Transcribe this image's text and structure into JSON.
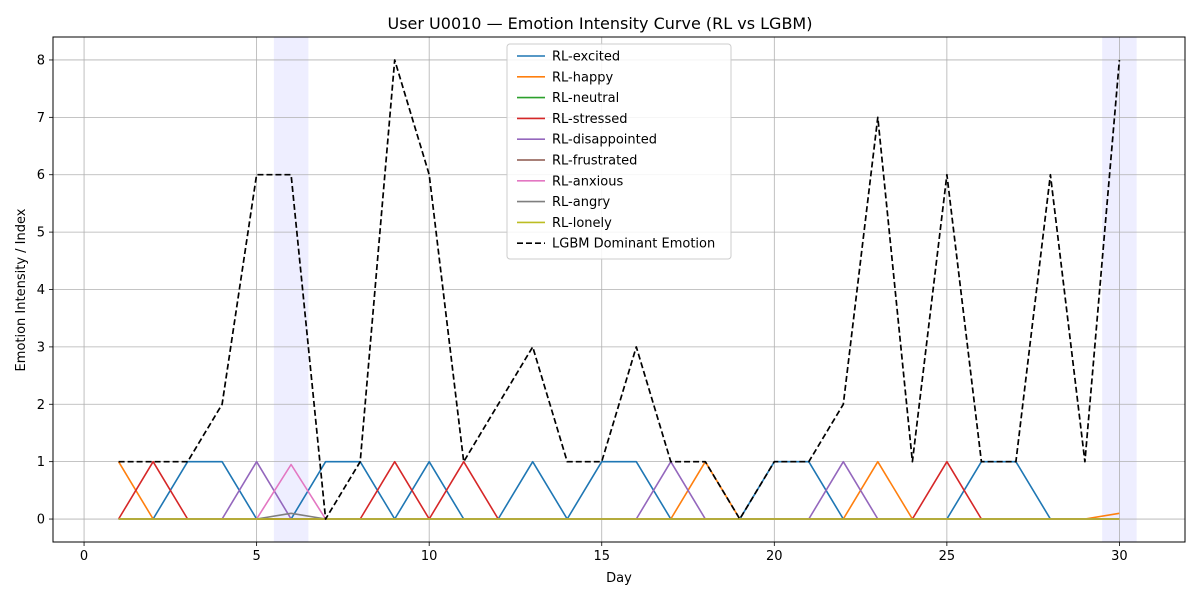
{
  "chart_data": {
    "type": "line",
    "title": "User U0010 — Emotion Intensity Curve (RL vs LGBM)",
    "xlabel": "Day",
    "ylabel": "Emotion Intensity / Index",
    "xlim": [
      -0.9,
      31.9
    ],
    "ylim": [
      -0.4,
      8.4
    ],
    "xticks": [
      0,
      5,
      10,
      15,
      20,
      25,
      30
    ],
    "yticks": [
      0,
      1,
      2,
      3,
      4,
      5,
      6,
      7,
      8
    ],
    "grid": true,
    "legend_position": "top-center",
    "shaded_spans": [
      [
        5.5,
        6.5
      ],
      [
        29.5,
        30.5
      ]
    ],
    "shade_color": "#eeeeff",
    "x": [
      1,
      2,
      3,
      4,
      5,
      6,
      7,
      8,
      9,
      10,
      11,
      12,
      13,
      14,
      15,
      16,
      17,
      18,
      19,
      20,
      21,
      22,
      23,
      24,
      25,
      26,
      27,
      28,
      29,
      30
    ],
    "series": [
      {
        "name": "RL-excited",
        "color": "#1f77b4",
        "dash": false,
        "values": [
          0,
          0,
          1,
          1,
          0,
          0,
          1,
          1,
          0,
          1,
          0,
          0,
          1,
          0,
          1,
          1,
          0,
          0,
          0,
          1,
          1,
          0,
          0,
          0,
          0,
          1,
          1,
          0,
          0,
          0
        ]
      },
      {
        "name": "RL-happy",
        "color": "#ff7f0e",
        "dash": false,
        "values": [
          1,
          0,
          0,
          0,
          0,
          0,
          0,
          0,
          0,
          0,
          0,
          0,
          0,
          0,
          0,
          0,
          0,
          1,
          0,
          0,
          0,
          0,
          1,
          0,
          0,
          0,
          0,
          0,
          0,
          0.1
        ]
      },
      {
        "name": "RL-neutral",
        "color": "#2ca02c",
        "dash": false,
        "values": [
          0,
          0,
          0,
          0,
          0,
          0,
          0,
          0,
          0,
          0,
          0,
          0,
          0,
          0,
          0,
          0,
          0,
          0,
          0,
          0,
          0,
          0,
          0,
          0,
          0,
          0,
          0,
          0,
          0,
          0
        ]
      },
      {
        "name": "RL-stressed",
        "color": "#d62728",
        "dash": false,
        "values": [
          0,
          1,
          0,
          0,
          0,
          0,
          0,
          0,
          1,
          0,
          1,
          0,
          0,
          0,
          0,
          0,
          0,
          0,
          0,
          0,
          0,
          0,
          0,
          0,
          1,
          0,
          0,
          0,
          0,
          0
        ]
      },
      {
        "name": "RL-disappointed",
        "color": "#9467bd",
        "dash": false,
        "values": [
          0,
          0,
          0,
          0,
          1,
          0,
          0,
          0,
          0,
          0,
          0,
          0,
          0,
          0,
          0,
          0,
          1,
          0,
          0,
          0,
          0,
          1,
          0,
          0,
          0,
          0,
          0,
          0,
          0,
          0
        ]
      },
      {
        "name": "RL-frustrated",
        "color": "#8c564b",
        "dash": false,
        "values": [
          0,
          0,
          0,
          0,
          0,
          0,
          0,
          0,
          0,
          0,
          0,
          0,
          0,
          0,
          0,
          0,
          0,
          0,
          0,
          0,
          0,
          0,
          0,
          0,
          0,
          0,
          0,
          0,
          0,
          0
        ]
      },
      {
        "name": "RL-anxious",
        "color": "#e377c2",
        "dash": false,
        "values": [
          0,
          0,
          0,
          0,
          0,
          0.95,
          0,
          0,
          0,
          0,
          0,
          0,
          0,
          0,
          0,
          0,
          0,
          0,
          0,
          0,
          0,
          0,
          0,
          0,
          0,
          0,
          0,
          0,
          0,
          0
        ]
      },
      {
        "name": "RL-angry",
        "color": "#7f7f7f",
        "dash": false,
        "values": [
          0,
          0,
          0,
          0,
          0,
          0.1,
          0,
          0,
          0,
          0,
          0,
          0,
          0,
          0,
          0,
          0,
          0,
          0,
          0,
          0,
          0,
          0,
          0,
          0,
          0,
          0,
          0,
          0,
          0,
          0
        ]
      },
      {
        "name": "RL-lonely",
        "color": "#bcbd22",
        "dash": false,
        "values": [
          0,
          0,
          0,
          0,
          0,
          0,
          0,
          0,
          0,
          0,
          0,
          0,
          0,
          0,
          0,
          0,
          0,
          0,
          0,
          0,
          0,
          0,
          0,
          0,
          0,
          0,
          0,
          0,
          0,
          0
        ]
      },
      {
        "name": "LGBM Dominant Emotion",
        "color": "#000000",
        "dash": true,
        "values": [
          1,
          1,
          1,
          2,
          6,
          6,
          0,
          1,
          8,
          6,
          1,
          2,
          3,
          1,
          1,
          3,
          1,
          1,
          0,
          1,
          1,
          2,
          7,
          1,
          6,
          1,
          1,
          6,
          1,
          8
        ]
      }
    ]
  }
}
